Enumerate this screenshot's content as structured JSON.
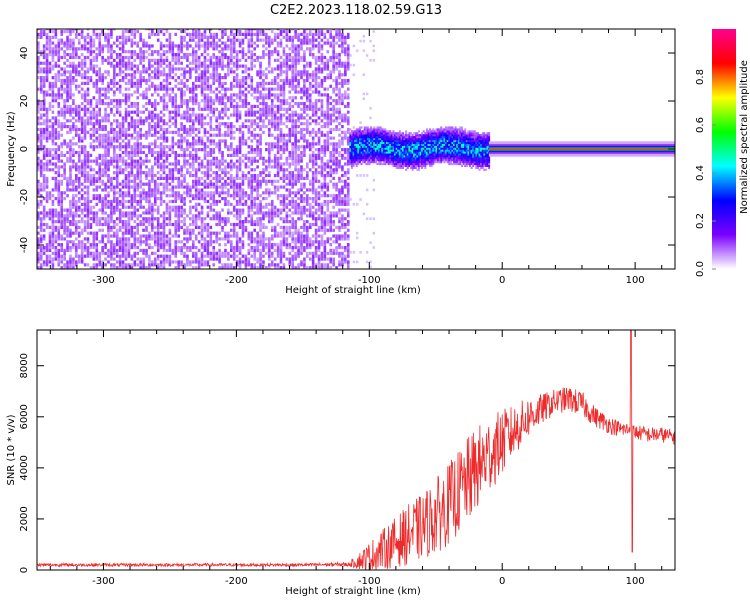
{
  "figure": {
    "title": "C2E2.2023.118.02.59.G13"
  },
  "chart_data": [
    {
      "type": "heatmap",
      "panel": "spectrogram",
      "xlabel": "Height of straight line (km)",
      "ylabel": "Frequency (Hz)",
      "xlim": [
        -350,
        130
      ],
      "ylim": [
        -50,
        50
      ],
      "xticks": [
        -300,
        -200,
        -100,
        0,
        100
      ],
      "yticks": [
        -40,
        -20,
        0,
        20,
        40
      ],
      "colorbar": {
        "label": "Normalized spectral amplitude",
        "range": [
          0,
          1
        ],
        "ticks": [
          0.0,
          0.2,
          0.4,
          0.6,
          0.8
        ],
        "colors": [
          "#ffffff",
          "#7a00ff",
          "#0000ff",
          "#00ffff",
          "#00ff00",
          "#ffff00",
          "#ff0000",
          "#ff0090"
        ]
      },
      "regions": [
        {
          "x_range": [
            -350,
            -115
          ],
          "freq_range": [
            -50,
            50
          ],
          "amplitude": 0.1,
          "description": "broadband noise"
        },
        {
          "x_range": [
            -115,
            -10
          ],
          "freq_center": 0,
          "freq_halfwidth": 4,
          "amplitude": 0.35
        },
        {
          "x_range": [
            -10,
            130
          ],
          "freq_center": 0,
          "freq_halfwidth": 1.5,
          "amplitude": 0.9
        }
      ]
    },
    {
      "type": "line",
      "panel": "snr",
      "xlabel": "Height of straight line (km)",
      "ylabel": "SNR (10 * v/v)",
      "xlim": [
        -350,
        130
      ],
      "ylim": [
        0,
        9400
      ],
      "xticks": [
        -300,
        -200,
        -100,
        0,
        100
      ],
      "yticks": [
        0,
        2000,
        4000,
        6000,
        8000
      ],
      "color": "#ee2a2a",
      "series": [
        {
          "x": [
            -350,
            -300,
            -250,
            -200,
            -150,
            -115,
            -100,
            -90,
            -80,
            -70,
            -60,
            -50,
            -40,
            -30,
            -20,
            -10,
            0,
            10,
            20,
            30,
            40,
            50,
            60,
            70,
            80,
            90,
            97,
            100,
            110,
            120,
            130
          ],
          "y": [
            200,
            200,
            200,
            200,
            200,
            220,
            500,
            800,
            1100,
            1400,
            1700,
            2100,
            2600,
            3200,
            3900,
            4500,
            5000,
            5500,
            6000,
            6300,
            6600,
            6700,
            6500,
            6000,
            5700,
            5500,
            5500,
            5400,
            5300,
            5300,
            5200
          ],
          "noise_amplitude": [
            60,
            60,
            60,
            60,
            60,
            80,
            600,
            800,
            1000,
            1200,
            1300,
            1500,
            1600,
            1700,
            1700,
            1500,
            1300,
            1000,
            800,
            600,
            500,
            500,
            500,
            400,
            350,
            300,
            300,
            300,
            300,
            300,
            300
          ]
        }
      ],
      "spike": {
        "x": 97,
        "y_max": 9400,
        "y_min": 700
      }
    }
  ]
}
